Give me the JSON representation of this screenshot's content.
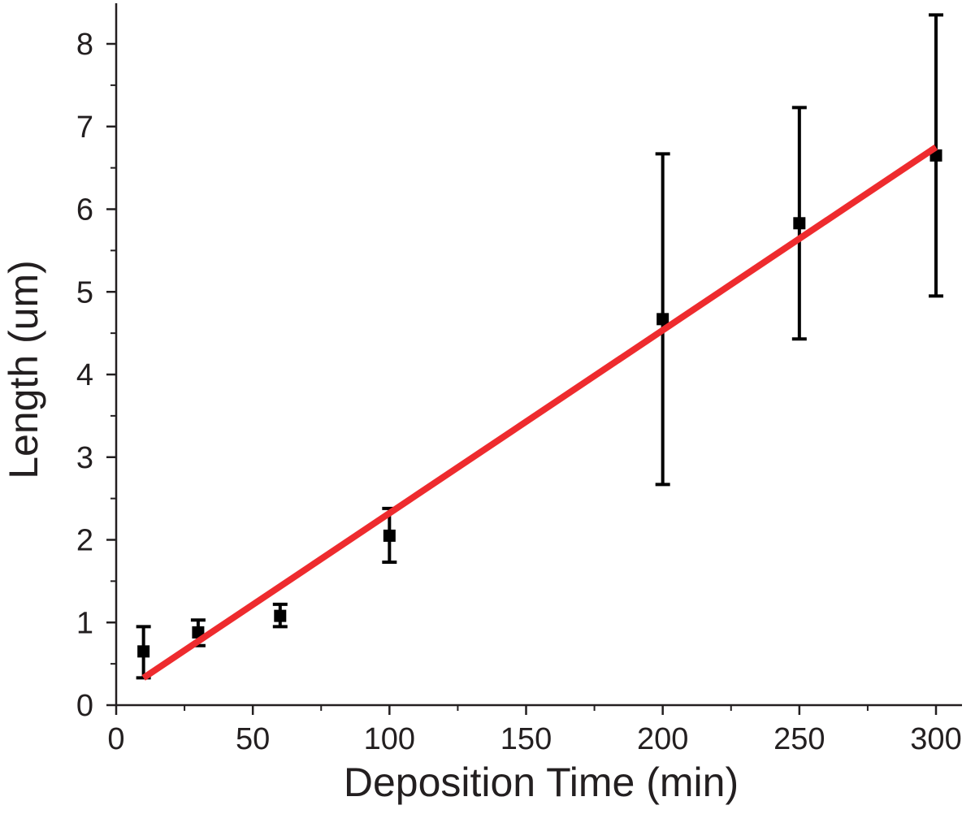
{
  "chart_data": {
    "type": "scatter",
    "title": "",
    "xlabel": "Deposition Time (min)",
    "ylabel": "Length (um)",
    "xlim": [
      0,
      310
    ],
    "ylim": [
      0,
      8.5
    ],
    "xticks": [
      0,
      50,
      100,
      150,
      200,
      250,
      300
    ],
    "yticks": [
      0,
      1,
      2,
      3,
      4,
      5,
      6,
      7,
      8
    ],
    "grid": false,
    "legend": "none",
    "series": [
      {
        "marker": "square",
        "color": "#000000",
        "points": [
          {
            "x": 10,
            "y": 0.65,
            "err_low": 0.33,
            "err_high": 0.95
          },
          {
            "x": 30,
            "y": 0.88,
            "err_low": 0.72,
            "err_high": 1.03
          },
          {
            "x": 60,
            "y": 1.08,
            "err_low": 0.95,
            "err_high": 1.22
          },
          {
            "x": 100,
            "y": 2.05,
            "err_low": 1.73,
            "err_high": 2.38
          },
          {
            "x": 200,
            "y": 4.67,
            "err_low": 2.67,
            "err_high": 6.67
          },
          {
            "x": 250,
            "y": 5.83,
            "err_low": 4.43,
            "err_high": 7.23
          },
          {
            "x": 300,
            "y": 6.65,
            "err_low": 4.95,
            "err_high": 8.35
          }
        ]
      }
    ],
    "fit_line": {
      "color": "#ee2b2e",
      "x": [
        10,
        300
      ],
      "y": [
        0.33,
        6.75
      ]
    }
  }
}
